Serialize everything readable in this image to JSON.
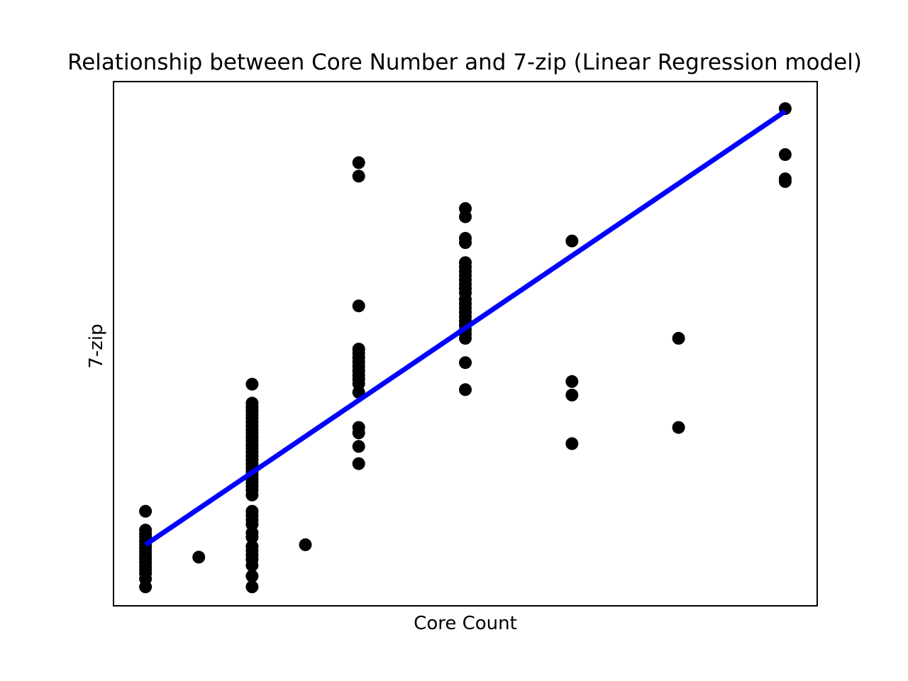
{
  "chart_data": {
    "type": "scatter",
    "title": "Relationship between Core Number and 7-zip (Linear Regression model)",
    "xlabel": "Core Count",
    "ylabel": "7-zip",
    "xlim": [
      -0.3,
      6.3
    ],
    "ylim": [
      -0.35,
      9.35
    ],
    "grid": false,
    "ticks_visible": false,
    "series": [
      {
        "kind": "points",
        "color": "#000000",
        "points": [
          [
            0,
            1.4
          ],
          [
            0,
            1.05
          ],
          [
            0,
            0.98
          ],
          [
            0,
            0.92
          ],
          [
            0,
            0.85
          ],
          [
            0,
            0.78
          ],
          [
            0,
            0.72
          ],
          [
            0,
            0.65
          ],
          [
            0,
            0.58
          ],
          [
            0,
            0.52
          ],
          [
            0,
            0.45
          ],
          [
            0,
            0.38
          ],
          [
            0,
            0.32
          ],
          [
            0,
            0.25
          ],
          [
            0,
            0.15
          ],
          [
            0,
            0.0
          ],
          [
            0.5,
            0.55
          ],
          [
            1,
            3.75
          ],
          [
            1,
            3.4
          ],
          [
            1,
            3.33
          ],
          [
            1,
            3.26
          ],
          [
            1,
            3.19
          ],
          [
            1,
            3.12
          ],
          [
            1,
            3.05
          ],
          [
            1,
            2.98
          ],
          [
            1,
            2.91
          ],
          [
            1,
            2.84
          ],
          [
            1,
            2.77
          ],
          [
            1,
            2.7
          ],
          [
            1,
            2.63
          ],
          [
            1,
            2.56
          ],
          [
            1,
            2.49
          ],
          [
            1,
            2.42
          ],
          [
            1,
            2.35
          ],
          [
            1,
            2.28
          ],
          [
            1,
            2.21
          ],
          [
            1,
            2.14
          ],
          [
            1,
            2.07
          ],
          [
            1,
            2.0
          ],
          [
            1,
            1.93
          ],
          [
            1,
            1.86
          ],
          [
            1,
            1.79
          ],
          [
            1,
            1.7
          ],
          [
            1,
            1.4
          ],
          [
            1,
            1.32
          ],
          [
            1,
            1.24
          ],
          [
            1,
            1.16
          ],
          [
            1,
            1.0
          ],
          [
            1,
            0.92
          ],
          [
            1,
            0.75
          ],
          [
            1,
            0.67
          ],
          [
            1,
            0.59
          ],
          [
            1,
            0.51
          ],
          [
            1,
            0.4
          ],
          [
            1,
            0.2
          ],
          [
            1,
            0.0
          ],
          [
            1.5,
            0.78
          ],
          [
            2,
            7.85
          ],
          [
            2,
            7.6
          ],
          [
            2,
            5.2
          ],
          [
            2,
            4.4
          ],
          [
            2,
            4.32
          ],
          [
            2,
            4.24
          ],
          [
            2,
            4.16
          ],
          [
            2,
            4.08
          ],
          [
            2,
            4.0
          ],
          [
            2,
            3.92
          ],
          [
            2,
            3.84
          ],
          [
            2,
            3.76
          ],
          [
            2,
            3.6
          ],
          [
            2,
            2.95
          ],
          [
            2,
            2.85
          ],
          [
            2,
            2.6
          ],
          [
            2,
            2.28
          ],
          [
            3,
            7.0
          ],
          [
            3,
            6.85
          ],
          [
            3,
            6.45
          ],
          [
            3,
            6.37
          ],
          [
            3,
            6.0
          ],
          [
            3,
            5.92
          ],
          [
            3,
            5.84
          ],
          [
            3,
            5.76
          ],
          [
            3,
            5.68
          ],
          [
            3,
            5.6
          ],
          [
            3,
            5.52
          ],
          [
            3,
            5.44
          ],
          [
            3,
            5.32
          ],
          [
            3,
            5.24
          ],
          [
            3,
            5.16
          ],
          [
            3,
            5.08
          ],
          [
            3,
            5.0
          ],
          [
            3,
            4.92
          ],
          [
            3,
            4.84
          ],
          [
            3,
            4.76
          ],
          [
            3,
            4.68
          ],
          [
            3,
            4.6
          ],
          [
            3,
            4.15
          ],
          [
            3,
            3.65
          ],
          [
            4,
            6.4
          ],
          [
            4,
            3.8
          ],
          [
            4,
            3.55
          ],
          [
            4,
            2.65
          ],
          [
            5,
            4.6
          ],
          [
            5,
            2.95
          ],
          [
            6,
            8.85
          ],
          [
            6,
            8.0
          ],
          [
            6,
            7.55
          ],
          [
            6,
            7.5
          ]
        ]
      },
      {
        "kind": "regression-line",
        "color": "#0000ff",
        "x": [
          0,
          6
        ],
        "y": [
          0.78,
          8.8
        ]
      }
    ]
  }
}
